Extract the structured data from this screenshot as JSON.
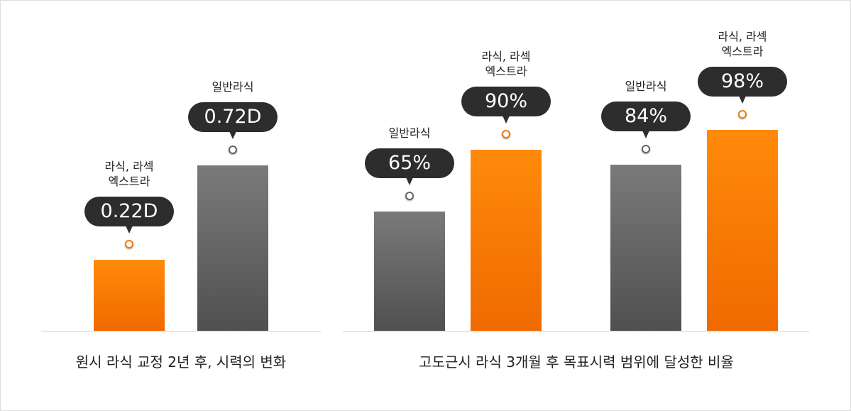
{
  "chart_data": [
    {
      "type": "bar",
      "title": "원시 라식 교정 2년 후, 시력의 변화",
      "categories": [
        "라식, 라섹\n엑스트라",
        "일반라식"
      ],
      "values": [
        0.22,
        0.72
      ],
      "value_labels": [
        "0.22D",
        "0.72D"
      ],
      "colors": [
        "#f77a00",
        "#666666"
      ],
      "unit": "D"
    },
    {
      "type": "bar",
      "title": "고도근시 라식 3개월 후 목표시력 범위에 달성한 비율",
      "categories": [
        "일반라식",
        "라식, 라섹\n엑스트라",
        "일반라식",
        "라식, 라섹\n엑스트라"
      ],
      "values": [
        65,
        90,
        84,
        98
      ],
      "value_labels": [
        "65%",
        "90%",
        "84%",
        "98%"
      ],
      "colors": [
        "#666666",
        "#f77a00",
        "#666666",
        "#f77a00"
      ],
      "unit": "%"
    }
  ]
}
